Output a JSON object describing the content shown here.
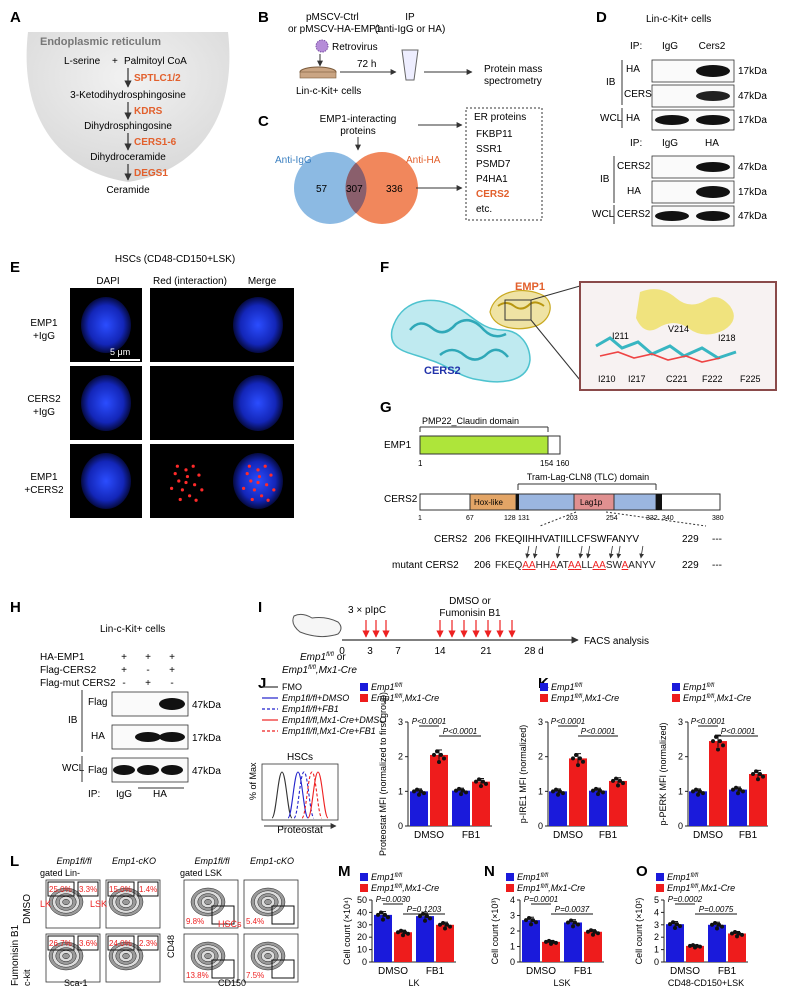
{
  "panels": {
    "A": "A",
    "B": "B",
    "C": "C",
    "D": "D",
    "E": "E",
    "F": "F",
    "G": "G",
    "H": "H",
    "I": "I",
    "J": "J",
    "K": "K",
    "L": "L",
    "M": "M",
    "N": "N",
    "O": "O"
  },
  "colors": {
    "accent_orange": "#E2602D",
    "blue_bar": "#1a1adb",
    "red_bar": "#ee1c1c",
    "venn_blue": "#7fb2e0",
    "venn_orange": "#ef7a4a",
    "venn_overlap": "#8a5f6c",
    "cyan_protein": "#4ec3cf",
    "yellow_protein": "#e3c23a"
  },
  "pathway": {
    "title": "Endoplasmic reticulum",
    "substrate_left": "L-serine",
    "plus": "+",
    "substrate_right": "Palmitoyl CoA",
    "steps": [
      {
        "enzyme": "SPTLC1/2",
        "product": "3-Ketodihydrosphingosine"
      },
      {
        "enzyme": "KDRS",
        "product": "Dihydrosphingosine"
      },
      {
        "enzyme": "CERS1-6",
        "product": "Dihydroceramide"
      },
      {
        "enzyme": "DEGS1",
        "product": "Ceramide"
      }
    ]
  },
  "panelB": {
    "line1": "pMSCV-Ctrl",
    "line2": "or pMSCV-HA-EMP1",
    "virus": "Retrovirus",
    "time": "72 h",
    "ip1": "IP",
    "ip2": "(anti-IgG or HA)",
    "cells": "Lin-c-Kit+ cells",
    "ms1": "Protein mass",
    "ms2": "spectrometry"
  },
  "panelC": {
    "title1": "EMP1-interacting",
    "title2": "proteins",
    "left_label": "Anti-IgG",
    "right_label": "Anti-HA",
    "left_only": "57",
    "overlap": "307",
    "right_only": "336",
    "box_title": "ER proteins",
    "proteins": [
      "FKBP11",
      "SSR1",
      "PSMD7",
      "P4HA1",
      "CERS2",
      "etc."
    ]
  },
  "panelD": {
    "cells": "Lin-c-Kit+ cells",
    "top": {
      "ip": "IP:",
      "lanes": [
        "IgG",
        "Cers2"
      ],
      "ib": "IB",
      "wcl": "WCL",
      "rows": [
        {
          "name": "HA",
          "kda": "17kDa"
        },
        {
          "name": "CERS2",
          "kda": "47kDa"
        },
        {
          "name": "HA",
          "kda": "17kDa"
        }
      ]
    },
    "bottom": {
      "ip": "IP:",
      "lanes": [
        "IgG",
        "HA"
      ],
      "ib": "IB",
      "wcl": "WCL",
      "rows": [
        {
          "name": "CERS2",
          "kda": "47kDa"
        },
        {
          "name": "HA",
          "kda": "17kDa"
        },
        {
          "name": "CERS2",
          "kda": "47kDa"
        }
      ]
    }
  },
  "panelE": {
    "title": "HSCs (CD48-CD150+LSK)",
    "cols": [
      "DAPI",
      "Red (interaction)",
      "Merge"
    ],
    "rows": [
      {
        "l1": "EMP1",
        "l2": "+IgG"
      },
      {
        "l1": "CERS2",
        "l2": "+IgG"
      },
      {
        "l1": "EMP1",
        "l2": "+CERS2"
      }
    ],
    "scale": "5 μm"
  },
  "panelF": {
    "emp1": "EMP1",
    "cers2": "CERS2",
    "residues": [
      "I211",
      "V214",
      "I218",
      "I210",
      "I217",
      "C221",
      "F222",
      "F225"
    ]
  },
  "panelG": {
    "emp1": {
      "label": "EMP1",
      "domain": "PMP22_Claudin domain",
      "start": "1",
      "end": "154",
      "total": "160"
    },
    "cers2": {
      "label": "CERS2",
      "tlc": "Tram-Lag-CLN8 (TLC) domain",
      "hox": "Hox-like",
      "lag": "Lag1p",
      "ticks": [
        "1",
        "67",
        "128",
        "131",
        "203",
        "254",
        "332",
        "340",
        "380"
      ]
    },
    "seq_wt": {
      "label": "CERS2",
      "start": "206",
      "seq": "FKEQIIHHVATIILLCFSWFANYV",
      "end": "229"
    },
    "seq_mut": {
      "label": "mutant CERS2",
      "start": "206",
      "seq": "FKEQAAHHAATAALLAASWAANYV",
      "end": "229"
    },
    "dashes": "---"
  },
  "panelH": {
    "cells": "Lin-c-Kit+ cells",
    "conditions": [
      {
        "name": "HA-EMP1",
        "v": [
          "+",
          "+",
          "+"
        ]
      },
      {
        "name": "Flag-CERS2",
        "v": [
          "+",
          "-",
          "+"
        ]
      },
      {
        "name": "Flag-mut CERS2",
        "v": [
          "-",
          "+",
          "-"
        ]
      }
    ],
    "ib": "IB",
    "wcl": "WCL",
    "rows": [
      {
        "name": "Flag",
        "kda": "47kDa"
      },
      {
        "name": "HA",
        "kda": "17kDa"
      },
      {
        "name": "Flag",
        "kda": "47kDa"
      }
    ],
    "ip": "IP:",
    "lanes": [
      "IgG",
      "HA"
    ]
  },
  "panelI": {
    "mouse1": "Emp1",
    "mouse1_sup": "fl/fl",
    "or": "or",
    "mouse2": "Emp1",
    "mouse2_sup": "fl/fl",
    "mouse2_suffix": ",Mx1-Cre",
    "pipc": "3 × pIpC",
    "treat1": "DMSO or",
    "treat2": "Fumonisin B1",
    "days": [
      "0",
      "3",
      "7",
      "14",
      "21",
      "28 d"
    ],
    "readout": "FACS analysis"
  },
  "panelJ": {
    "legend": [
      "FMO",
      "Emp1fl/fl+DMSO",
      "Emp1fl/fl+FB1",
      "Emp1fl/fl,Mx1-Cre+DMSO",
      "Emp1fl/fl,Mx1-Cre+FB1"
    ],
    "hist_title": "HSCs",
    "hist_y": "% of Max",
    "hist_x": "Proteostat"
  },
  "legend_groups": {
    "a": "Emp1",
    "a_sup": "fl/fl",
    "b": "Emp1",
    "b_sup": "fl/fl",
    "b_suffix": ",Mx1-Cre"
  },
  "panelL": {
    "col1": "Emp1fl/fl",
    "col2": "Emp1-cKO",
    "col3": "Emp1fl/fl",
    "col4": "Emp1-cKO",
    "gate1": "gated Lin-",
    "gate2": "gated LSK",
    "row1": "DMSO",
    "row2": "Fumonisin B1",
    "lk": "LK",
    "lsk": "LSK",
    "hscs": "HSCs",
    "ax1x": "Sca-1",
    "ax1y": "c-kit",
    "ax2x": "CD150",
    "ax2y": "CD48",
    "pct": [
      "25.0%",
      "3.3%",
      "15.0%",
      "1.4%",
      "26.7%",
      "3.6%",
      "24.0%",
      "2.3%",
      "9.8%",
      "5.4%",
      "13.8%",
      "7.5%"
    ]
  },
  "chart_data": [
    {
      "type": "bar",
      "panel": "J",
      "categories": [
        "DMSO",
        "FB1"
      ],
      "series": [
        {
          "name": "Emp1fl/fl",
          "values": [
            1.0,
            1.02
          ]
        },
        {
          "name": "Emp1fl/fl,Mx1-Cre",
          "values": [
            2.05,
            1.28
          ]
        }
      ],
      "ylabel": "Proteostat MFI (normalized to first group)",
      "ylim": [
        0,
        3
      ],
      "yticks": [
        "0",
        "1",
        "2",
        "3"
      ],
      "pvalues": [
        "P<0.0001",
        "P<0.0001"
      ]
    },
    {
      "type": "bar",
      "panel": "K1",
      "categories": [
        "DMSO",
        "FB1"
      ],
      "series": [
        {
          "name": "Emp1fl/fl",
          "values": [
            1.0,
            1.02
          ]
        },
        {
          "name": "Emp1fl/fl,Mx1-Cre",
          "values": [
            1.95,
            1.3
          ]
        }
      ],
      "ylabel": "p-IRE1 MFI (normalized)",
      "ylim": [
        0,
        3
      ],
      "yticks": [
        "0",
        "1",
        "2",
        "3"
      ],
      "pvalues": [
        "P<0.0001",
        "P<0.0001"
      ]
    },
    {
      "type": "bar",
      "panel": "K2",
      "categories": [
        "DMSO",
        "FB1"
      ],
      "series": [
        {
          "name": "Emp1fl/fl",
          "values": [
            1.0,
            1.05
          ]
        },
        {
          "name": "Emp1fl/fl,Mx1-Cre",
          "values": [
            2.45,
            1.5
          ]
        }
      ],
      "ylabel": "p-PERK MFI (normalized)",
      "ylim": [
        0,
        3
      ],
      "yticks": [
        "0",
        "1",
        "2",
        "3"
      ],
      "pvalues": [
        "P<0.0001",
        "P<0.0001"
      ]
    },
    {
      "type": "bar",
      "panel": "M",
      "categories": [
        "DMSO",
        "FB1"
      ],
      "series": [
        {
          "name": "Emp1fl/fl",
          "values": [
            38,
            37
          ]
        },
        {
          "name": "Emp1fl/fl,Mx1-Cre",
          "values": [
            24,
            30
          ]
        }
      ],
      "ylabel": "Cell count (×10⁴)",
      "xlabel": "LK",
      "ylim": [
        0,
        50
      ],
      "yticks": [
        "0",
        "10",
        "20",
        "30",
        "40",
        "50"
      ],
      "pvalues": [
        "P=0.0030",
        "P=0.1203"
      ]
    },
    {
      "type": "bar",
      "panel": "N",
      "categories": [
        "DMSO",
        "FB1"
      ],
      "series": [
        {
          "name": "Emp1fl/fl",
          "values": [
            2.7,
            2.55
          ]
        },
        {
          "name": "Emp1fl/fl,Mx1-Cre",
          "values": [
            1.3,
            1.95
          ]
        }
      ],
      "ylabel": "Cell count (×10³)",
      "xlabel": "LSK",
      "ylim": [
        0,
        4
      ],
      "yticks": [
        "0",
        "1",
        "2",
        "3",
        "4"
      ],
      "pvalues": [
        "P=0.0001",
        "P=0.0037"
      ]
    },
    {
      "type": "bar",
      "panel": "O",
      "categories": [
        "DMSO",
        "FB1"
      ],
      "series": [
        {
          "name": "Emp1fl/fl",
          "values": [
            3.05,
            3.0
          ]
        },
        {
          "name": "Emp1fl/fl,Mx1-Cre",
          "values": [
            1.3,
            2.3
          ]
        }
      ],
      "ylabel": "Cell count (×10²)",
      "xlabel": "CD48-CD150+LSK",
      "ylim": [
        0,
        5
      ],
      "yticks": [
        "0",
        "1",
        "2",
        "3",
        "4",
        "5"
      ],
      "pvalues": [
        "P=0.0002",
        "P=0.0075"
      ]
    }
  ]
}
